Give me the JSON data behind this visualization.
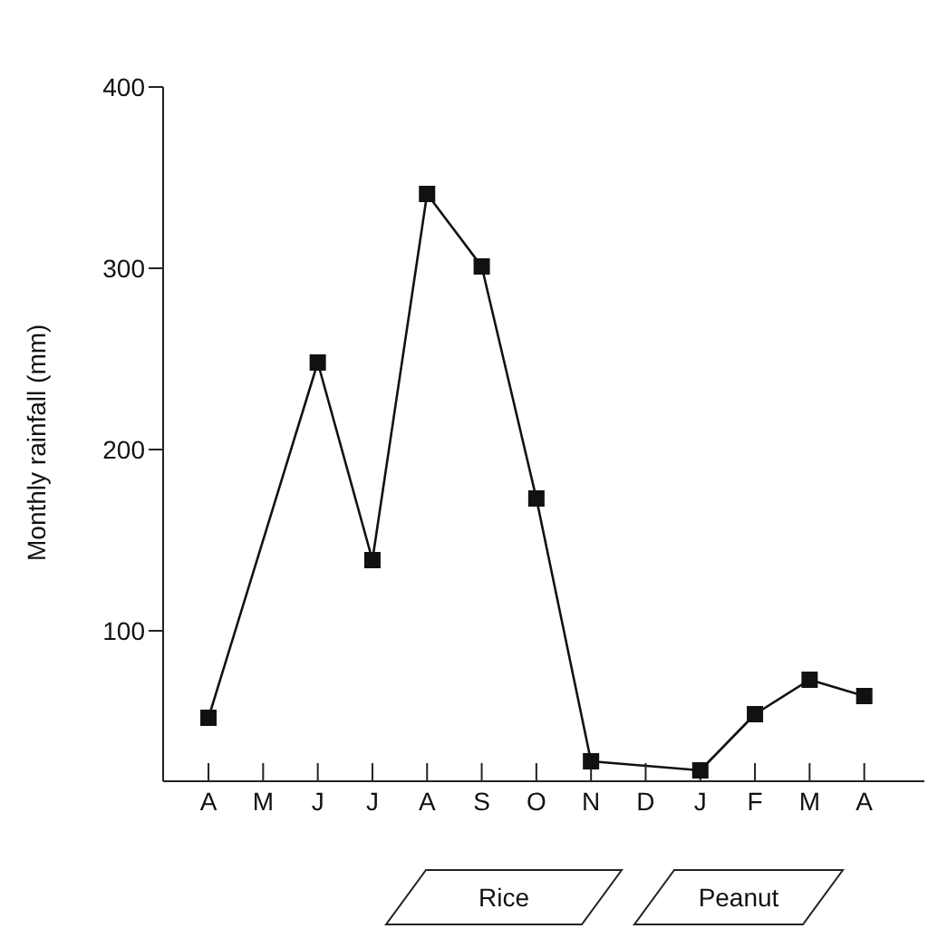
{
  "chart_data": {
    "type": "line",
    "ylabel": "Monthly rainfall (mm)",
    "categories": [
      "A",
      "M",
      "J",
      "J",
      "A",
      "S",
      "O",
      "N",
      "D",
      "J",
      "F",
      "M",
      "A"
    ],
    "values": [
      52,
      null,
      248,
      139,
      341,
      301,
      173,
      28,
      null,
      23,
      54,
      73,
      64
    ],
    "color": "#111111",
    "marker": "square",
    "line_style": "solid",
    "ylim": [
      17,
      400
    ],
    "yticks": [
      100,
      200,
      300,
      400
    ],
    "grid": false,
    "legend": false,
    "annotations": [
      "Rice",
      "Peanut"
    ]
  }
}
